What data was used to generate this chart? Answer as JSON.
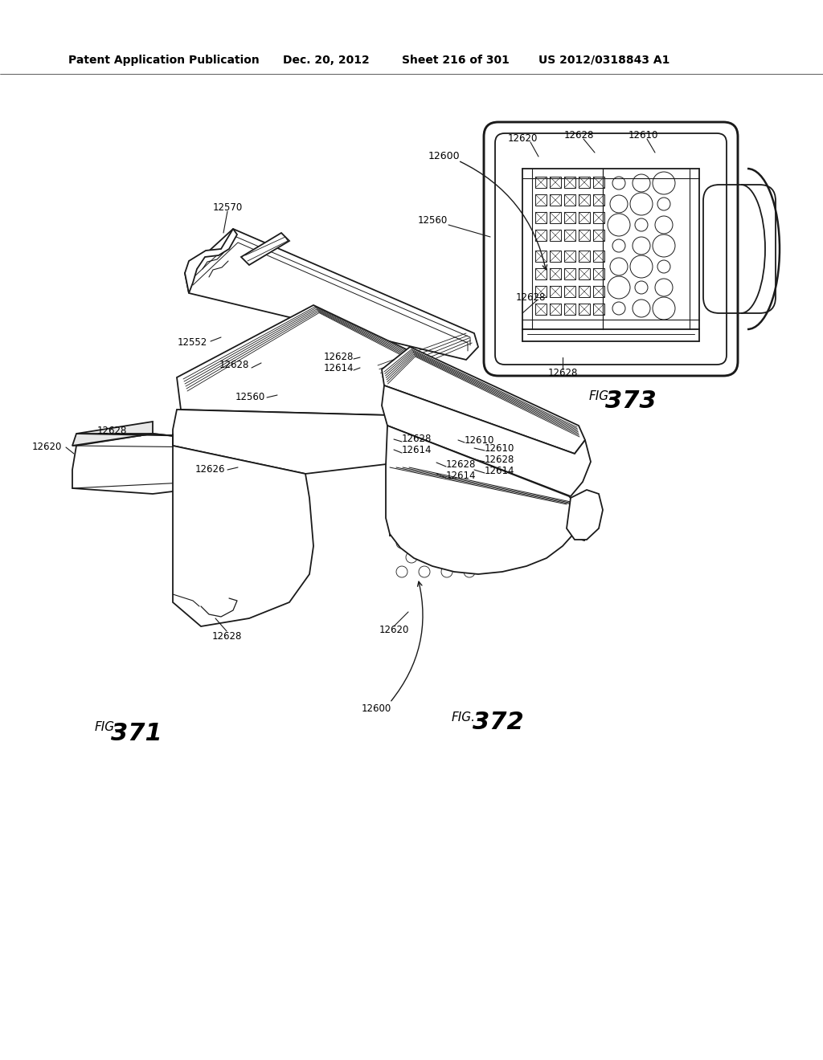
{
  "bg_color": "#ffffff",
  "header_text": "Patent Application Publication",
  "header_date": "Dec. 20, 2012",
  "header_sheet": "Sheet 216 of 301",
  "header_patent": "US 2012/0318843 A1",
  "line_color": "#1a1a1a",
  "line_width": 1.3,
  "thin_line": 0.7,
  "thick_line": 2.0
}
